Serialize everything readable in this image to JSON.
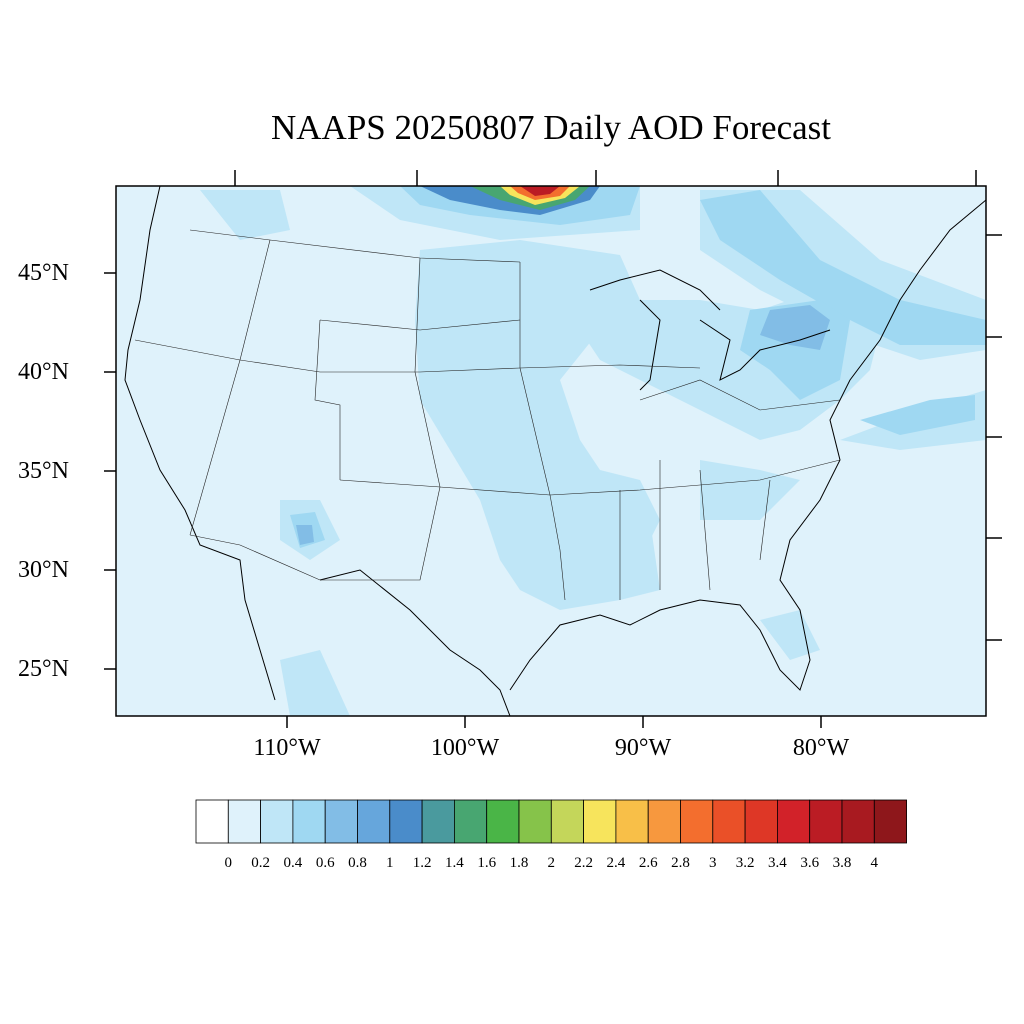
{
  "title": "NAAPS 20250807 Daily AOD Forecast",
  "lat_labels": [
    "45°N",
    "40°N",
    "35°N",
    "30°N",
    "25°N"
  ],
  "lon_labels": [
    "110°W",
    "100°W",
    "90°W",
    "80°W"
  ],
  "colorbar": {
    "labels": [
      "0",
      "0.2",
      "0.4",
      "0.6",
      "0.8",
      "1",
      "1.2",
      "1.4",
      "1.6",
      "1.8",
      "2",
      "2.2",
      "2.4",
      "2.6",
      "2.8",
      "3",
      "3.2",
      "3.4",
      "3.6",
      "3.8",
      "4"
    ],
    "colors": [
      "#ffffff",
      "#dff2fb",
      "#bfe6f7",
      "#9fd8f2",
      "#82bde6",
      "#66a6dc",
      "#4a8cca",
      "#4a9a9e",
      "#48a671",
      "#4ab547",
      "#86c34a",
      "#c4d65a",
      "#f7e45c",
      "#f8bf48",
      "#f7983e",
      "#f36e2e",
      "#ea5028",
      "#de3726",
      "#d22229",
      "#bb1c24",
      "#a81a20",
      "#8e171b"
    ]
  },
  "aod_field": {
    "background_level": "0-0.2",
    "features": [
      {
        "name": "smoke plume north of North Dakota/Minnesota border",
        "max_level": "3.6-3.8"
      },
      {
        "name": "great lakes and northeast",
        "max_level": "0.6-0.8"
      },
      {
        "name": "arizona hotspot",
        "max_level": "0.6-0.8"
      },
      {
        "name": "central plains to gulf coast",
        "max_level": "0.2-0.4"
      }
    ]
  }
}
